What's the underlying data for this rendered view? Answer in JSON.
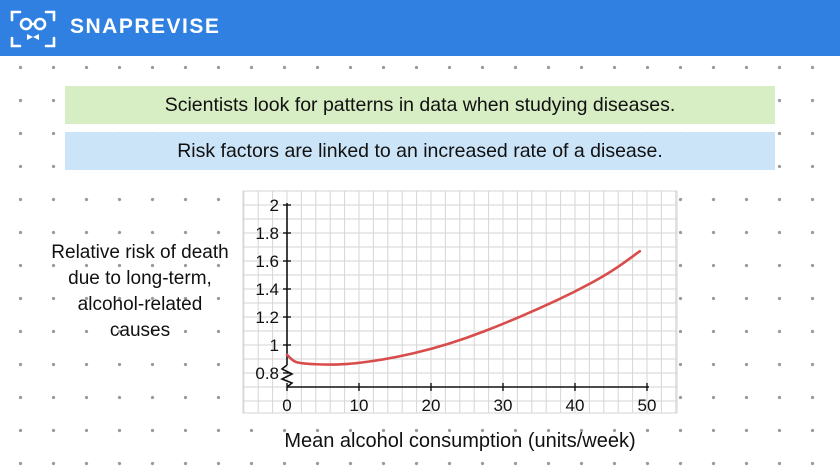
{
  "header": {
    "brand": "SNAPREVISE",
    "logo_icon": "glasses-face-icon",
    "color": "#2f80e0"
  },
  "banners": {
    "top": "Scientists look for patterns in data when studying diseases.",
    "bottom": "Risk factors are linked to an increased rate of a disease."
  },
  "chart_data": {
    "type": "line",
    "ylabel": "Relative risk of death due to long-term, alcohol-related causes",
    "xlabel": "Mean alcohol consumption (units/week)",
    "xlim": [
      0,
      50
    ],
    "ylim": [
      0.8,
      2
    ],
    "y_axis_break": true,
    "xticks": [
      "0",
      "10",
      "20",
      "30",
      "40",
      "50"
    ],
    "yticks": [
      "0.8",
      "1",
      "1.2",
      "1.4",
      "1.6",
      "1.8",
      "2"
    ],
    "grid": true,
    "line_color": "#d84c4c",
    "series": [
      {
        "x": [
          0,
          1,
          2,
          3,
          5,
          7,
          10,
          15,
          20,
          25,
          30,
          35,
          40,
          45,
          49
        ],
        "y": [
          0.93,
          0.88,
          0.87,
          0.865,
          0.86,
          0.86,
          0.87,
          0.91,
          0.97,
          1.05,
          1.15,
          1.26,
          1.38,
          1.52,
          1.67
        ]
      }
    ]
  }
}
